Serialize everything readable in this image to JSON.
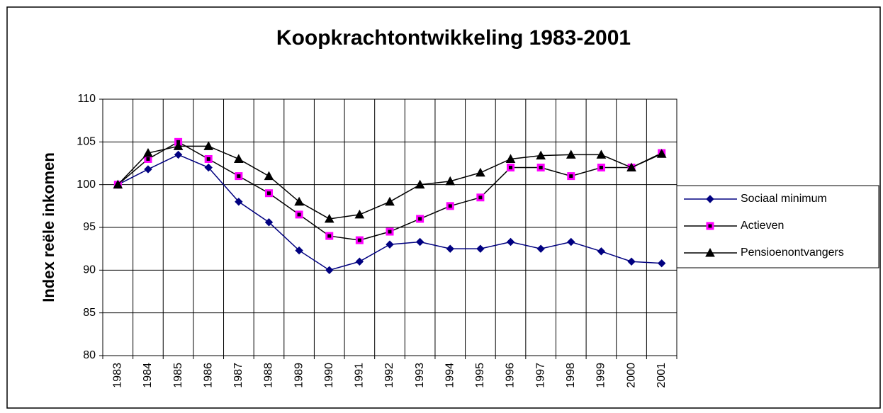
{
  "chart_data": {
    "type": "line",
    "title": "Koopkrachtontwikkeling 1983-2001",
    "y_label": "Index reële inkomen",
    "categories": [
      "1983",
      "1984",
      "1985",
      "1986",
      "1987",
      "1988",
      "1989",
      "1990",
      "1991",
      "1992",
      "1993",
      "1994",
      "1995",
      "1996",
      "1997",
      "1998",
      "1999",
      "2000",
      "2001"
    ],
    "series": [
      {
        "name": "Sociaal minimum",
        "color": "#000080",
        "marker": "diamond",
        "marker_fill": "#000080",
        "values": [
          100,
          101.8,
          103.5,
          102,
          98,
          95.6,
          92.3,
          90,
          91,
          93,
          93.3,
          92.5,
          92.5,
          93.3,
          92.5,
          93.3,
          92.2,
          91,
          90.8
        ]
      },
      {
        "name": "Actieven",
        "color": "#000000",
        "marker": "square",
        "marker_fill": "#ff00ff",
        "values": [
          100,
          103,
          105,
          103,
          101,
          99,
          96.5,
          94,
          93.5,
          94.5,
          96,
          97.5,
          98.5,
          102,
          102,
          101,
          102,
          102,
          103.7
        ]
      },
      {
        "name": "Pensioenontvangers",
        "color": "#000000",
        "marker": "triangle",
        "marker_fill": "#000000",
        "values": [
          100,
          103.7,
          104.5,
          104.5,
          103,
          101,
          98,
          96,
          96.5,
          98,
          100,
          100.4,
          101.4,
          103,
          103.4,
          103.5,
          103.5,
          102,
          103.6
        ]
      }
    ],
    "ylim": [
      80,
      110
    ],
    "yticks": [
      80,
      85,
      90,
      95,
      100,
      105,
      110
    ],
    "grid": true,
    "legend": "right"
  }
}
